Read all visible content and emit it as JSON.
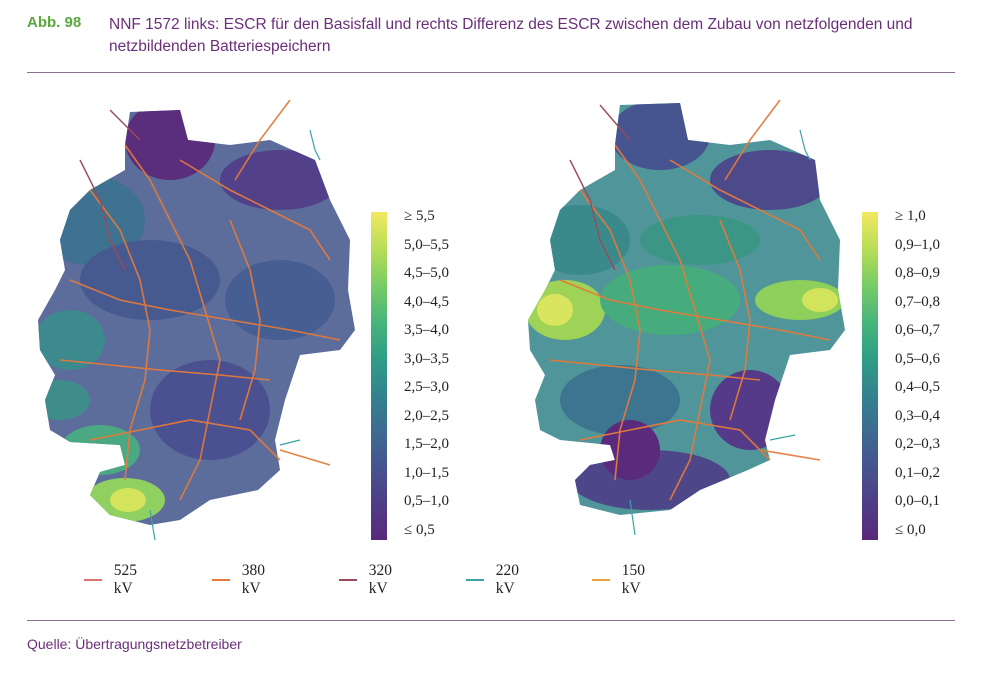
{
  "figure": {
    "label": "Abb. 98",
    "title": "NNF 1572 links: ESCR für den Basisfall und rechts Differenz des ESCR zwischen dem Zubau von netzfolgenden und netzbildenden Batteriespeichern"
  },
  "colorbar_left": {
    "labels": [
      "≥ 5,5",
      "5,0–5,5",
      "4,5–5,0",
      "4,0–4,5",
      "3,5–4,0",
      "3,0–3,5",
      "2,5–3,0",
      "2,0–2,5",
      "1,5–2,0",
      "1,0–1,5",
      "0,5–1,0",
      "≤ 0,5"
    ],
    "gradient": [
      "#f2e862",
      "#b9dd57",
      "#79cc66",
      "#48b57a",
      "#2f9e86",
      "#33838e",
      "#3d6b91",
      "#465490",
      "#4f3d86",
      "#59287b"
    ]
  },
  "colorbar_right": {
    "labels": [
      "≥ 1,0",
      "0,9–1,0",
      "0,8–0,9",
      "0,7–0,8",
      "0,6–0,7",
      "0,5–0,6",
      "0,4–0,5",
      "0,3–0,4",
      "0,2–0,3",
      "0,1–0,2",
      "0,0–0,1",
      "≤ 0,0"
    ],
    "gradient": [
      "#f2e862",
      "#b9dd57",
      "#79cc66",
      "#48b57a",
      "#2f9e86",
      "#33838e",
      "#3d6b91",
      "#465490",
      "#4f3d86",
      "#59287b"
    ]
  },
  "legend": [
    {
      "label": "525 kV",
      "color": "#e0736a"
    },
    {
      "label": "380 kV",
      "color": "#e57a3a"
    },
    {
      "label": "320 kV",
      "color": "#9a4a5a"
    },
    {
      "label": "220 kV",
      "color": "#3aa3a8"
    },
    {
      "label": "150 kV",
      "color": "#eba23a"
    }
  ],
  "source": "Quelle: Übertragungsnetzbetreiber"
}
